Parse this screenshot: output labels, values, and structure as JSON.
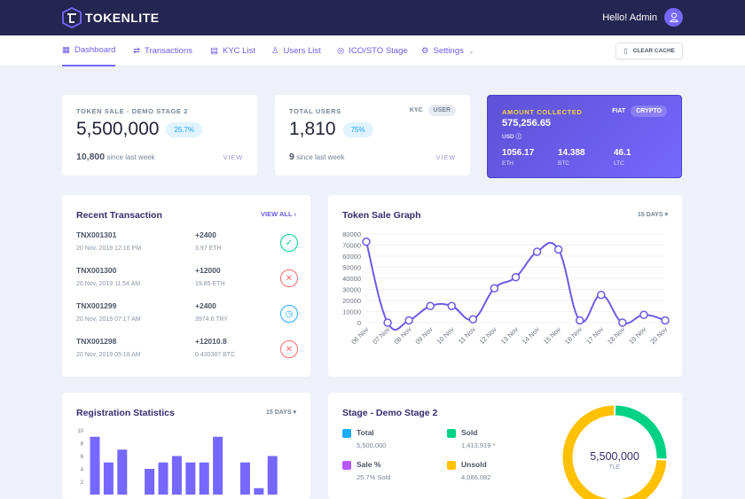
{
  "header": {
    "brand": "TOKENLITE",
    "greeting": "Hello! Admin"
  },
  "nav": {
    "items": [
      {
        "label": "Dashboard",
        "icon": "dashboard-icon"
      },
      {
        "label": "Transactions",
        "icon": "transfer-icon"
      },
      {
        "label": "KYC List",
        "icon": "list-icon"
      },
      {
        "label": "Users List",
        "icon": "users-icon"
      },
      {
        "label": "ICO/STO Stage",
        "icon": "coins-icon"
      },
      {
        "label": "Settings",
        "icon": "gear-icon"
      }
    ],
    "clear_cache": "CLEAR CACHE"
  },
  "token_sale": {
    "label": "TOKEN SALE - DEMO STAGE 2",
    "value": "5,500,000",
    "percent": "25.7%",
    "since_value": "10,800",
    "since_label": "since last week",
    "view": "VIEW"
  },
  "users": {
    "label": "TOTAL USERS",
    "kyc": "KYC",
    "user": "USER",
    "value": "1,810",
    "percent": "75%",
    "since_value": "9",
    "since_label": "since last week",
    "view": "VIEW"
  },
  "amount": {
    "label": "AMOUNT COLLECTED",
    "fiat": "FIAT",
    "crypto": "CRYPTO",
    "value": "575,256.65",
    "currency": "USD",
    "coins": [
      {
        "value": "1056.17",
        "unit": "ETH"
      },
      {
        "value": "14.388",
        "unit": "BTC"
      },
      {
        "value": "46.1",
        "unit": "LTC"
      }
    ]
  },
  "recent": {
    "title": "Recent Transaction",
    "view_all": "VIEW ALL",
    "items": [
      {
        "id": "TNX001301",
        "date": "20 Nov, 2019 12:16 PM",
        "amount": "+2400",
        "currency": "3.97 ETH",
        "status": "approved"
      },
      {
        "id": "TNX001300",
        "date": "20 Nov, 2019 11:54 AM",
        "amount": "+12000",
        "currency": "19.85 ETH",
        "status": "canceled"
      },
      {
        "id": "TNX001299",
        "date": "20 Nov, 2019 07:17 AM",
        "amount": "+2400",
        "currency": "3974.6 TRY",
        "status": "pending"
      },
      {
        "id": "TNX001298",
        "date": "20 Nov, 2019 05:18 AM",
        "amount": "+12010.8",
        "currency": "0.430387 BTC",
        "status": "canceled"
      }
    ]
  },
  "status_colors": {
    "approved": "#00d285",
    "canceled": "#ff6868",
    "pending": "#1babfe"
  },
  "chart_data": [
    {
      "type": "line",
      "title": "Token Sale Graph",
      "range": "15 DAYS",
      "categories": [
        "06 Nov",
        "07 Nov",
        "08 Nov",
        "09 Nov",
        "10 Nov",
        "11 Nov",
        "12 Nov",
        "13 Nov",
        "14 Nov",
        "15 Nov",
        "16 Nov",
        "17 Nov",
        "18 Nov",
        "19 Nov",
        "20 Nov"
      ],
      "values": [
        73000,
        0,
        2000,
        15000,
        15000,
        3000,
        31000,
        41000,
        64000,
        66000,
        2000,
        25000,
        0,
        7000,
        2000
      ],
      "ylim": [
        0,
        80000
      ],
      "yticks": [
        0,
        10000,
        20000,
        30000,
        40000,
        50000,
        60000,
        70000,
        80000
      ],
      "color": "#6c5ce7",
      "grid": true
    },
    {
      "type": "bar",
      "title": "Registration Statistics",
      "range": "15 DAYS",
      "values": [
        9,
        5,
        7,
        0,
        4,
        5,
        6,
        5,
        5,
        9,
        0,
        5,
        1,
        6
      ],
      "ylim": [
        0,
        10
      ],
      "yticks": [
        2,
        4,
        6,
        8,
        10
      ],
      "color": "#7668fe"
    },
    {
      "type": "pie",
      "title": "Stage - Demo Stage 2",
      "center_value": "5,500,000",
      "center_unit": "TLE",
      "legend": [
        {
          "label": "Total",
          "value": "5,500,000",
          "color": "#1babfe"
        },
        {
          "label": "Sold",
          "value": "1,413,919 *",
          "color": "#00d285"
        },
        {
          "label": "Sale %",
          "value": "25.7% Sold",
          "color": "#b759fe"
        },
        {
          "label": "Unsold",
          "value": "4,086,082",
          "color": "#ffc100"
        }
      ],
      "slices": [
        {
          "label": "Sold",
          "value": 1413919,
          "color": "#00d285"
        },
        {
          "label": "Unsold",
          "value": 4086082,
          "color": "#ffc100"
        }
      ]
    }
  ]
}
